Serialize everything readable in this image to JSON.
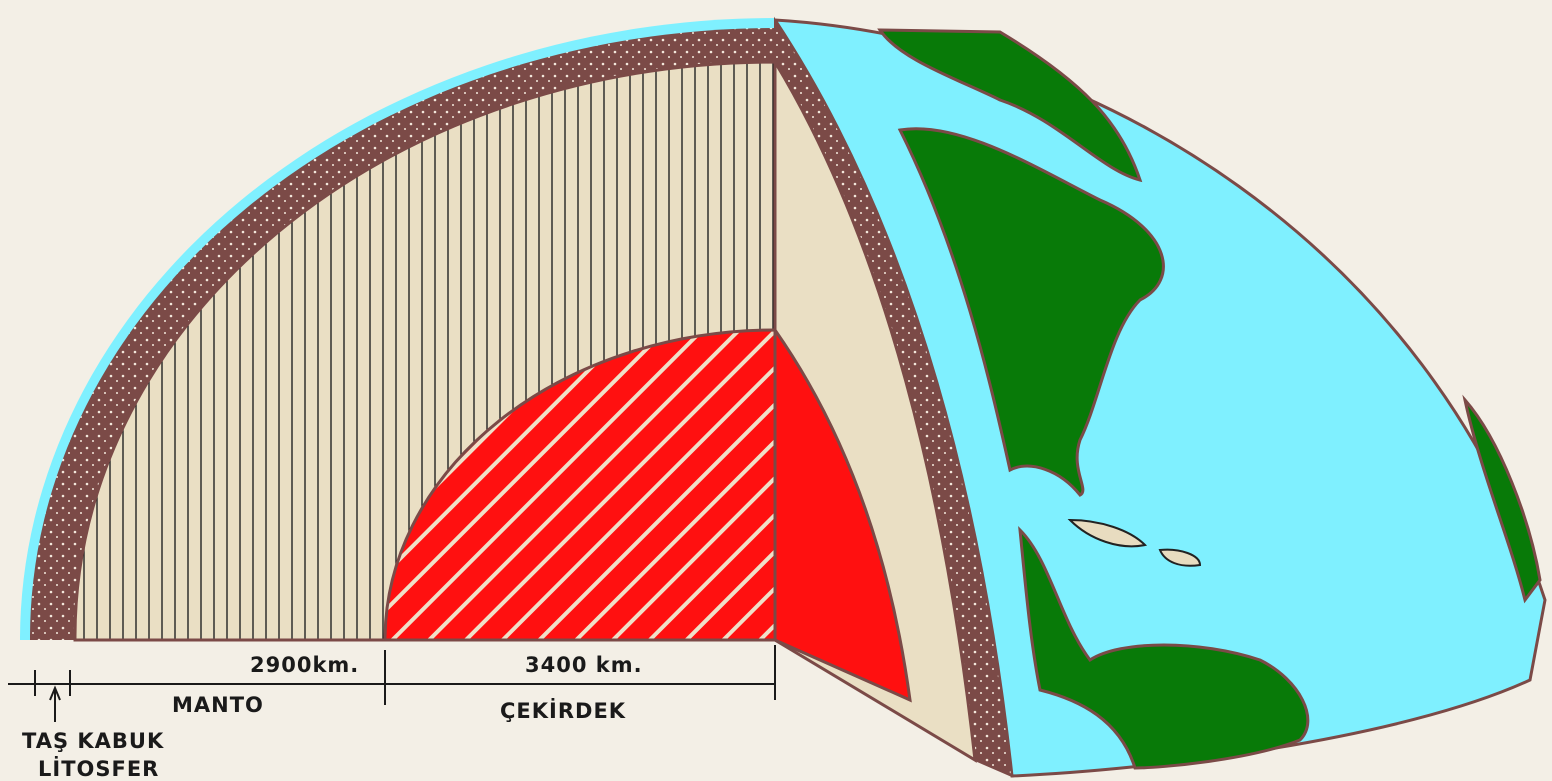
{
  "scale": {
    "mantle_thickness": "2900km.",
    "core_radius": "3400 km."
  },
  "layers": {
    "mantle": "MANTO",
    "core": "ÇEKİRDEK",
    "crust": "TAŞ KABUK",
    "lithosphere": "LİTOSFER"
  }
}
